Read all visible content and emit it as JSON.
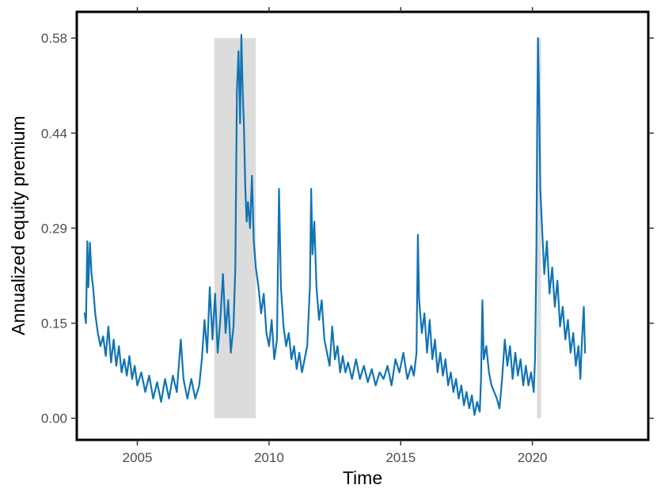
{
  "chart_data": {
    "type": "line",
    "title": "",
    "xlabel": "Time",
    "ylabel": "Annualized equity premium",
    "xlim": [
      2002.7,
      2024.4
    ],
    "ylim": [
      -0.033,
      0.62
    ],
    "x_ticks": [
      2005,
      2010,
      2015,
      2020
    ],
    "x_tick_labels": [
      "2005",
      "2010",
      "2015",
      "2020"
    ],
    "y_ticks": [
      0.0,
      0.145,
      0.29,
      0.435,
      0.58
    ],
    "y_tick_labels": [
      "0.00",
      "0.15",
      "0.29",
      "0.44",
      "0.58"
    ],
    "grid": false,
    "legend": "none",
    "colors": {
      "line": "#1173b5",
      "shade": "#dcdcdc",
      "frame": "#000000"
    },
    "shaded_periods": [
      {
        "x0": 2007.92,
        "x1": 2009.5,
        "y0": 0.0,
        "y1": 0.58
      },
      {
        "x0": 2020.17,
        "x1": 2020.33,
        "y0": 0.0,
        "y1": 0.58
      }
    ],
    "series": [
      {
        "values": [
          [
            2003.0,
            0.16
          ],
          [
            2003.05,
            0.145
          ],
          [
            2003.1,
            0.27
          ],
          [
            2003.14,
            0.2
          ],
          [
            2003.2,
            0.268
          ],
          [
            2003.26,
            0.22
          ],
          [
            2003.32,
            0.2
          ],
          [
            2003.4,
            0.16
          ],
          [
            2003.5,
            0.13
          ],
          [
            2003.6,
            0.11
          ],
          [
            2003.7,
            0.125
          ],
          [
            2003.8,
            0.095
          ],
          [
            2003.9,
            0.14
          ],
          [
            2004.0,
            0.085
          ],
          [
            2004.1,
            0.12
          ],
          [
            2004.2,
            0.08
          ],
          [
            2004.3,
            0.11
          ],
          [
            2004.4,
            0.07
          ],
          [
            2004.5,
            0.09
          ],
          [
            2004.6,
            0.065
          ],
          [
            2004.7,
            0.095
          ],
          [
            2004.8,
            0.06
          ],
          [
            2004.9,
            0.08
          ],
          [
            2005.0,
            0.05
          ],
          [
            2005.15,
            0.07
          ],
          [
            2005.3,
            0.04
          ],
          [
            2005.45,
            0.065
          ],
          [
            2005.6,
            0.03
          ],
          [
            2005.75,
            0.055
          ],
          [
            2005.9,
            0.025
          ],
          [
            2006.05,
            0.06
          ],
          [
            2006.2,
            0.03
          ],
          [
            2006.35,
            0.065
          ],
          [
            2006.5,
            0.04
          ],
          [
            2006.65,
            0.12
          ],
          [
            2006.75,
            0.06
          ],
          [
            2006.9,
            0.03
          ],
          [
            2007.05,
            0.06
          ],
          [
            2007.2,
            0.03
          ],
          [
            2007.35,
            0.05
          ],
          [
            2007.45,
            0.09
          ],
          [
            2007.55,
            0.15
          ],
          [
            2007.65,
            0.1
          ],
          [
            2007.75,
            0.2
          ],
          [
            2007.85,
            0.12
          ],
          [
            2007.95,
            0.19
          ],
          [
            2008.05,
            0.1
          ],
          [
            2008.15,
            0.15
          ],
          [
            2008.25,
            0.22
          ],
          [
            2008.35,
            0.13
          ],
          [
            2008.45,
            0.18
          ],
          [
            2008.55,
            0.1
          ],
          [
            2008.65,
            0.14
          ],
          [
            2008.72,
            0.23
          ],
          [
            2008.78,
            0.5
          ],
          [
            2008.84,
            0.56
          ],
          [
            2008.9,
            0.45
          ],
          [
            2008.95,
            0.585
          ],
          [
            2009.0,
            0.5
          ],
          [
            2009.05,
            0.44
          ],
          [
            2009.1,
            0.35
          ],
          [
            2009.15,
            0.3
          ],
          [
            2009.2,
            0.33
          ],
          [
            2009.28,
            0.29
          ],
          [
            2009.35,
            0.37
          ],
          [
            2009.42,
            0.27
          ],
          [
            2009.5,
            0.23
          ],
          [
            2009.6,
            0.2
          ],
          [
            2009.7,
            0.16
          ],
          [
            2009.8,
            0.19
          ],
          [
            2009.9,
            0.13
          ],
          [
            2010.0,
            0.11
          ],
          [
            2010.1,
            0.15
          ],
          [
            2010.2,
            0.09
          ],
          [
            2010.3,
            0.12
          ],
          [
            2010.38,
            0.35
          ],
          [
            2010.45,
            0.2
          ],
          [
            2010.55,
            0.14
          ],
          [
            2010.65,
            0.11
          ],
          [
            2010.75,
            0.13
          ],
          [
            2010.85,
            0.09
          ],
          [
            2010.95,
            0.11
          ],
          [
            2011.05,
            0.075
          ],
          [
            2011.15,
            0.1
          ],
          [
            2011.25,
            0.07
          ],
          [
            2011.35,
            0.09
          ],
          [
            2011.45,
            0.11
          ],
          [
            2011.55,
            0.2
          ],
          [
            2011.6,
            0.35
          ],
          [
            2011.65,
            0.25
          ],
          [
            2011.72,
            0.3
          ],
          [
            2011.8,
            0.2
          ],
          [
            2011.9,
            0.15
          ],
          [
            2012.0,
            0.18
          ],
          [
            2012.1,
            0.12
          ],
          [
            2012.2,
            0.1
          ],
          [
            2012.3,
            0.08
          ],
          [
            2012.4,
            0.14
          ],
          [
            2012.5,
            0.09
          ],
          [
            2012.6,
            0.11
          ],
          [
            2012.7,
            0.07
          ],
          [
            2012.8,
            0.095
          ],
          [
            2012.9,
            0.07
          ],
          [
            2013.0,
            0.085
          ],
          [
            2013.15,
            0.06
          ],
          [
            2013.3,
            0.09
          ],
          [
            2013.45,
            0.06
          ],
          [
            2013.6,
            0.08
          ],
          [
            2013.75,
            0.055
          ],
          [
            2013.9,
            0.075
          ],
          [
            2014.05,
            0.05
          ],
          [
            2014.2,
            0.07
          ],
          [
            2014.35,
            0.06
          ],
          [
            2014.5,
            0.08
          ],
          [
            2014.65,
            0.05
          ],
          [
            2014.8,
            0.09
          ],
          [
            2014.95,
            0.07
          ],
          [
            2015.1,
            0.1
          ],
          [
            2015.25,
            0.06
          ],
          [
            2015.4,
            0.08
          ],
          [
            2015.5,
            0.065
          ],
          [
            2015.6,
            0.1
          ],
          [
            2015.65,
            0.28
          ],
          [
            2015.7,
            0.18
          ],
          [
            2015.8,
            0.13
          ],
          [
            2015.9,
            0.16
          ],
          [
            2016.0,
            0.1
          ],
          [
            2016.1,
            0.15
          ],
          [
            2016.2,
            0.09
          ],
          [
            2016.3,
            0.12
          ],
          [
            2016.4,
            0.07
          ],
          [
            2016.5,
            0.1
          ],
          [
            2016.6,
            0.065
          ],
          [
            2016.7,
            0.09
          ],
          [
            2016.8,
            0.05
          ],
          [
            2016.9,
            0.07
          ],
          [
            2017.0,
            0.04
          ],
          [
            2017.1,
            0.06
          ],
          [
            2017.2,
            0.03
          ],
          [
            2017.3,
            0.05
          ],
          [
            2017.4,
            0.02
          ],
          [
            2017.5,
            0.04
          ],
          [
            2017.6,
            0.015
          ],
          [
            2017.7,
            0.035
          ],
          [
            2017.8,
            0.005
          ],
          [
            2017.9,
            0.025
          ],
          [
            2018.0,
            0.01
          ],
          [
            2018.05,
            0.06
          ],
          [
            2018.1,
            0.18
          ],
          [
            2018.15,
            0.09
          ],
          [
            2018.25,
            0.11
          ],
          [
            2018.35,
            0.07
          ],
          [
            2018.45,
            0.05
          ],
          [
            2018.55,
            0.04
          ],
          [
            2018.65,
            0.03
          ],
          [
            2018.75,
            0.015
          ],
          [
            2018.85,
            0.06
          ],
          [
            2018.95,
            0.12
          ],
          [
            2019.05,
            0.08
          ],
          [
            2019.15,
            0.11
          ],
          [
            2019.25,
            0.06
          ],
          [
            2019.35,
            0.1
          ],
          [
            2019.45,
            0.065
          ],
          [
            2019.55,
            0.09
          ],
          [
            2019.65,
            0.05
          ],
          [
            2019.75,
            0.08
          ],
          [
            2019.85,
            0.05
          ],
          [
            2019.95,
            0.07
          ],
          [
            2020.05,
            0.04
          ],
          [
            2020.1,
            0.09
          ],
          [
            2020.15,
            0.25
          ],
          [
            2020.18,
            0.44
          ],
          [
            2020.21,
            0.58
          ],
          [
            2020.25,
            0.5
          ],
          [
            2020.3,
            0.35
          ],
          [
            2020.38,
            0.28
          ],
          [
            2020.45,
            0.22
          ],
          [
            2020.55,
            0.27
          ],
          [
            2020.65,
            0.19
          ],
          [
            2020.75,
            0.23
          ],
          [
            2020.85,
            0.17
          ],
          [
            2020.95,
            0.21
          ],
          [
            2021.05,
            0.14
          ],
          [
            2021.15,
            0.17
          ],
          [
            2021.25,
            0.12
          ],
          [
            2021.35,
            0.15
          ],
          [
            2021.45,
            0.1
          ],
          [
            2021.55,
            0.13
          ],
          [
            2021.65,
            0.08
          ],
          [
            2021.75,
            0.11
          ],
          [
            2021.82,
            0.06
          ],
          [
            2021.88,
            0.12
          ],
          [
            2021.95,
            0.17
          ],
          [
            2022.0,
            0.1
          ]
        ]
      }
    ]
  }
}
